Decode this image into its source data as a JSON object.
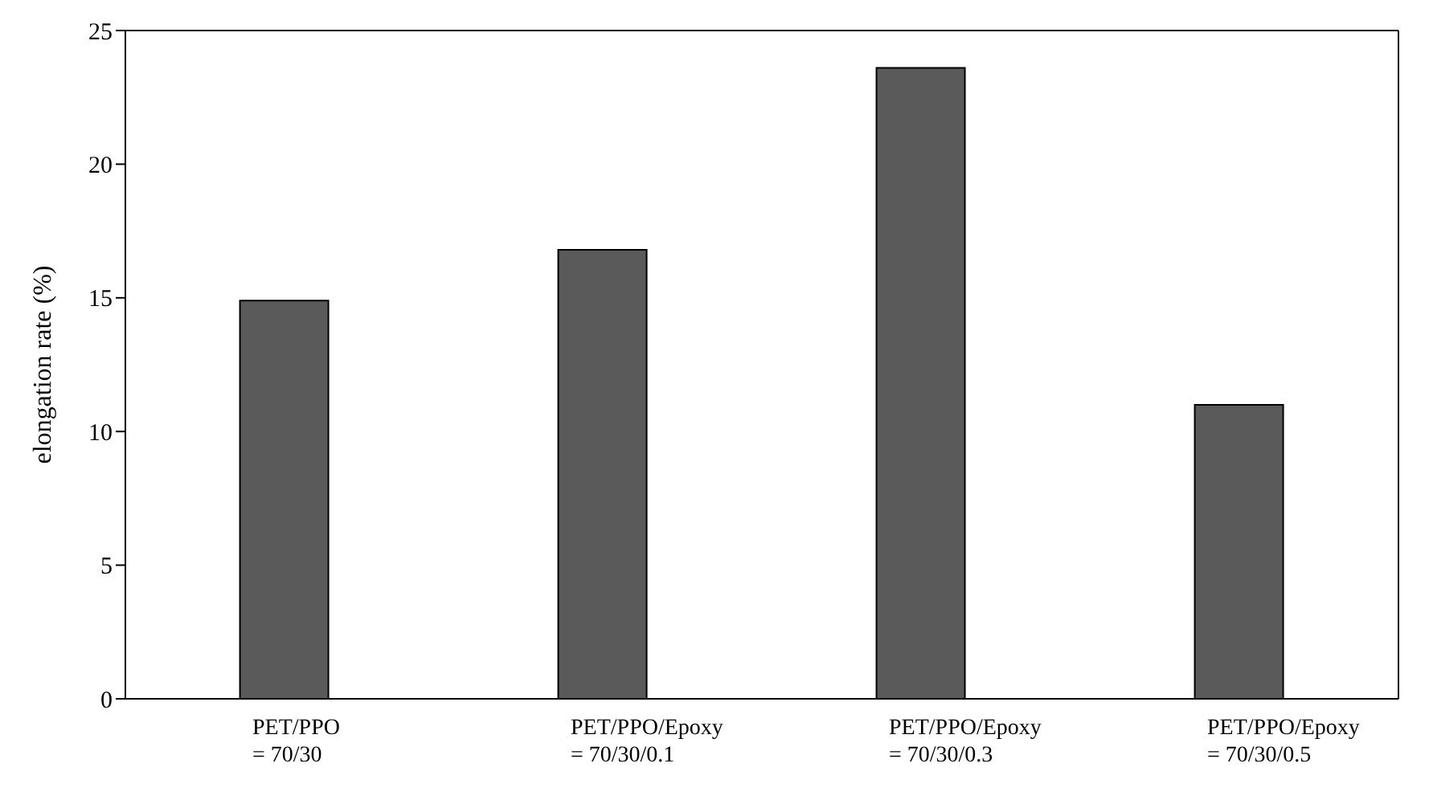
{
  "chart_data": {
    "type": "bar",
    "ylabel": "elongation rate (%)",
    "categories": [
      "PET/PPO\n= 70/30",
      "PET/PPO/Epoxy\n= 70/30/0.1",
      "PET/PPO/Epoxy\n= 70/30/0.3",
      "PET/PPO/Epoxy\n= 70/30/0.5"
    ],
    "values": [
      14.9,
      16.8,
      23.6,
      11.0
    ],
    "color": "#5a5a5a",
    "ylim": [
      0,
      25
    ],
    "yticks": [
      0,
      5,
      10,
      15,
      20,
      25
    ],
    "grid": false
  }
}
